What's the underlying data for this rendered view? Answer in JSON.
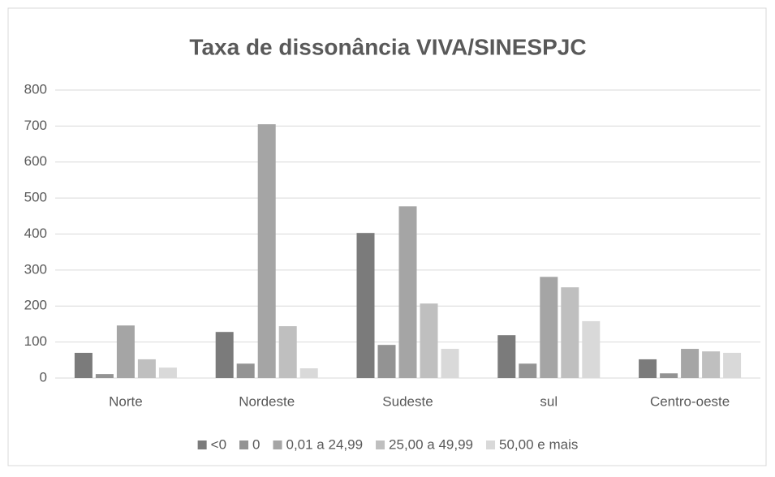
{
  "chart_data": {
    "type": "bar",
    "title": "Taxa de dissonância VIVA/SINESPJC",
    "categories": [
      "Norte",
      "Nordeste",
      "Sudeste",
      "sul",
      "Centro-oeste"
    ],
    "series": [
      {
        "name": "<0",
        "color": "#7b7b7b",
        "values": [
          70,
          128,
          403,
          119,
          52
        ]
      },
      {
        "name": "0",
        "color": "#939393",
        "values": [
          11,
          40,
          92,
          40,
          13
        ]
      },
      {
        "name": "0,01 a 24,99",
        "color": "#a5a5a5",
        "values": [
          146,
          705,
          477,
          281,
          81
        ]
      },
      {
        "name": "25,00 a 49,99",
        "color": "#bfbfbf",
        "values": [
          52,
          144,
          207,
          252,
          74
        ]
      },
      {
        "name": "50,00 e mais",
        "color": "#d9d9d9",
        "values": [
          29,
          27,
          81,
          158,
          70
        ]
      }
    ],
    "ylim": [
      0,
      800
    ],
    "yticks": [
      0,
      100,
      200,
      300,
      400,
      500,
      600,
      700,
      800
    ],
    "grid": true,
    "legend": "bottom"
  }
}
